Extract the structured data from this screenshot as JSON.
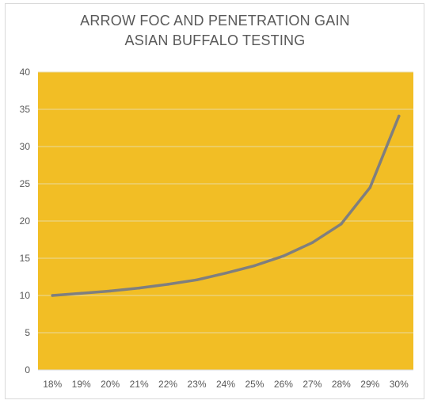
{
  "chart_data": {
    "type": "line",
    "title_line1": "ARROW FOC AND PENETRATION GAIN",
    "title_line2": "ASIAN BUFFALO TESTING",
    "xlabel": "",
    "ylabel": "",
    "categories": [
      "18%",
      "19%",
      "20%",
      "21%",
      "22%",
      "23%",
      "24%",
      "25%",
      "26%",
      "27%",
      "28%",
      "29%",
      "30%"
    ],
    "series": [
      {
        "values": [
          10.0,
          10.3,
          10.6,
          11.0,
          11.5,
          12.1,
          13.0,
          14.0,
          15.3,
          17.1,
          19.6,
          24.5,
          34.1
        ],
        "color": "#7f7f7f"
      }
    ],
    "ylim": [
      0,
      40
    ],
    "yticks": [
      0,
      5,
      10,
      15,
      20,
      25,
      30,
      35,
      40
    ],
    "grid": true,
    "plot_background": "#f2be25",
    "legend": "none"
  }
}
